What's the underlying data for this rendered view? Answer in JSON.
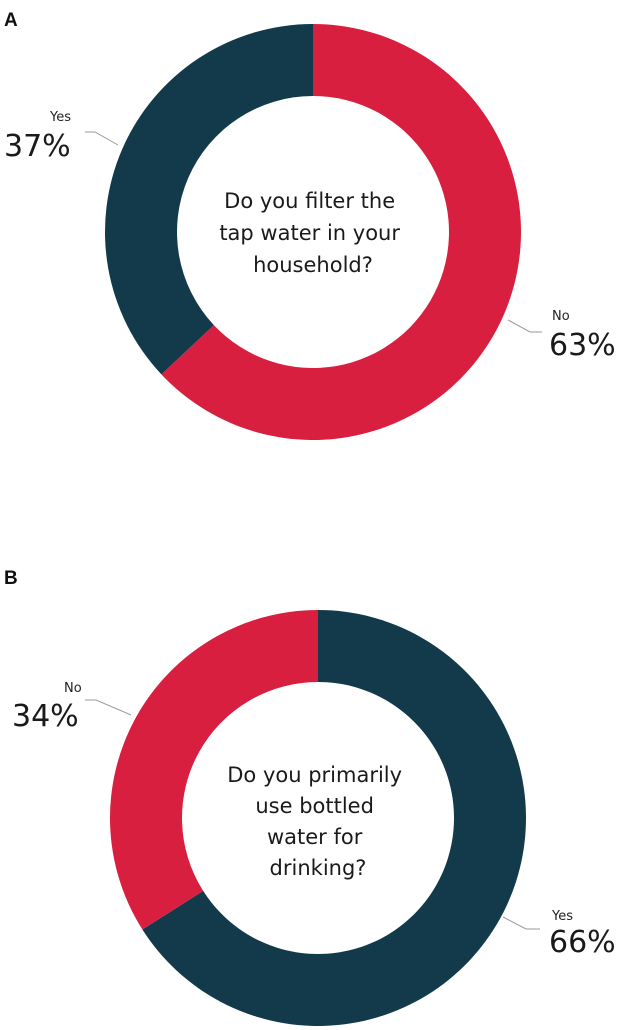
{
  "colors": {
    "yes": "#133a4a",
    "no": "#d81f40",
    "hole": "#ffffff"
  },
  "chart_data": [
    {
      "type": "pie",
      "panel_label": "A",
      "title_lines": [
        "Do you filter the",
        "tap water in your",
        "household?"
      ],
      "slices": [
        {
          "label": "No",
          "value": 63,
          "display": "63%",
          "color": "#d81f40"
        },
        {
          "label": "Yes",
          "value": 37,
          "display": "37%",
          "color": "#133a4a"
        }
      ]
    },
    {
      "type": "pie",
      "panel_label": "B",
      "title_lines": [
        "Do you primarily",
        "use bottled",
        "water for",
        "drinking?"
      ],
      "slices": [
        {
          "label": "Yes",
          "value": 66,
          "display": "66%",
          "color": "#133a4a"
        },
        {
          "label": "No",
          "value": 34,
          "display": "34%",
          "color": "#d81f40"
        }
      ]
    }
  ]
}
